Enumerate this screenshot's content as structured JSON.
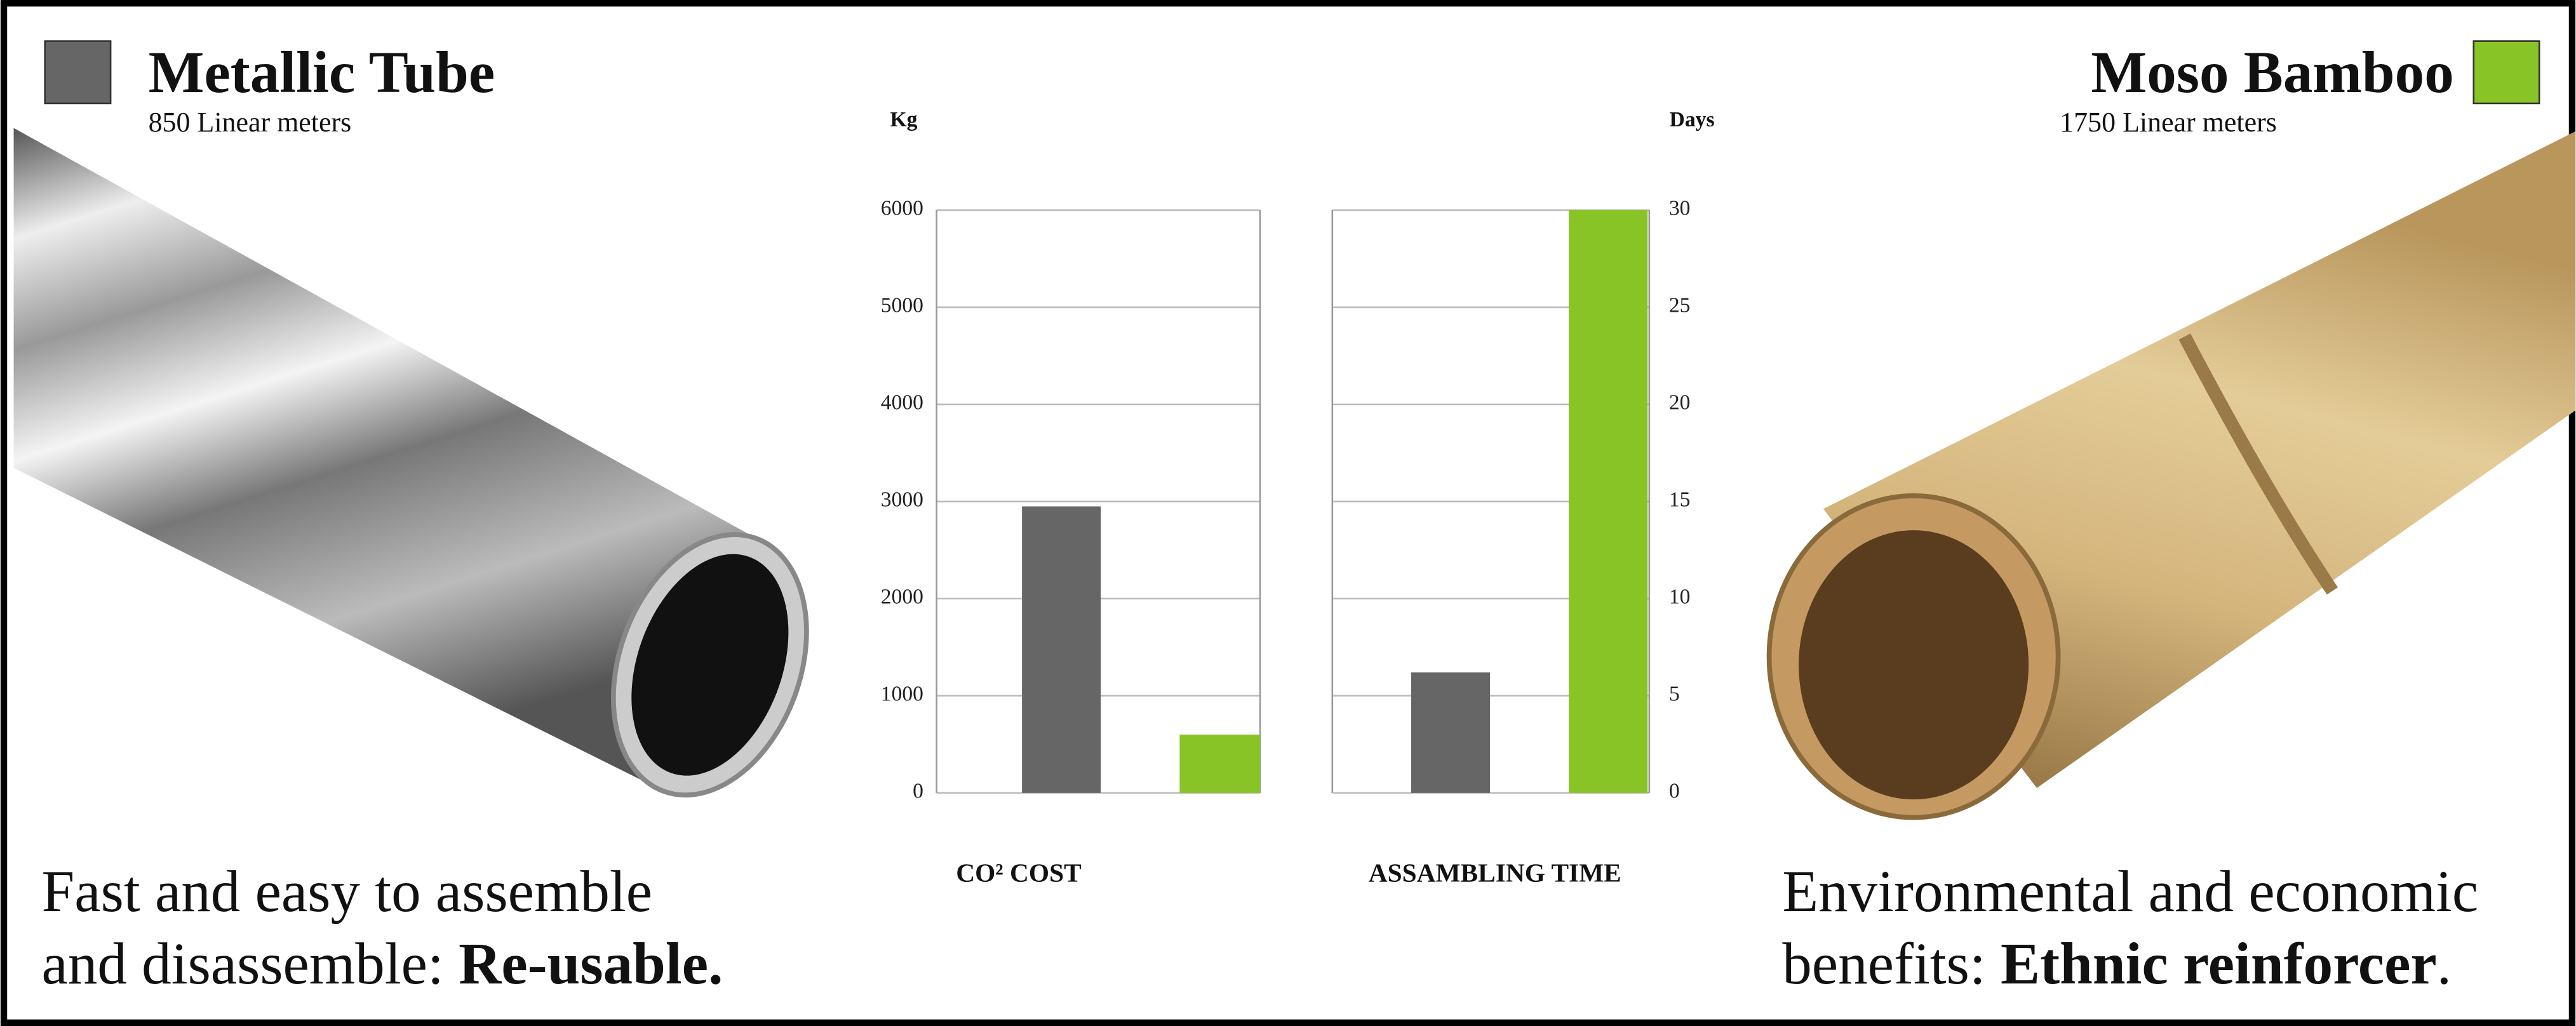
{
  "left": {
    "title": "Metallic Tube",
    "subtitle": "850 Linear meters",
    "caption_lines": [
      [
        "Fast and easy to assemble"
      ],
      [
        "and disassemble: ",
        "Re-usable."
      ]
    ]
  },
  "right": {
    "title": "Moso Bamboo",
    "subtitle": "1750 Linear meters",
    "caption_lines": [
      [
        "Environmental and economic"
      ],
      [
        "benefits: ",
        "Ethnic reinforcer",
        "."
      ]
    ]
  },
  "chart_data": [
    {
      "type": "bar",
      "title": "CO² COST",
      "y_label": "Kg",
      "categories": [
        null,
        null
      ],
      "values": [
        2950,
        600
      ],
      "colors": [
        "#666666",
        "#88c425"
      ],
      "ylim": [
        0,
        6000
      ],
      "yticks": [
        0,
        1000,
        2000,
        3000,
        4000,
        5000,
        6000
      ],
      "grid": true,
      "axis_side": "left"
    },
    {
      "type": "bar",
      "title": "ASSAMBLING TIME",
      "y_label": "Days",
      "categories": [
        null,
        null
      ],
      "values": [
        6.2,
        30
      ],
      "colors": [
        "#666666",
        "#88c425"
      ],
      "ylim": [
        0,
        30
      ],
      "yticks": [
        0,
        5,
        10,
        15,
        20,
        25,
        30
      ],
      "grid": true,
      "axis_side": "right"
    }
  ]
}
